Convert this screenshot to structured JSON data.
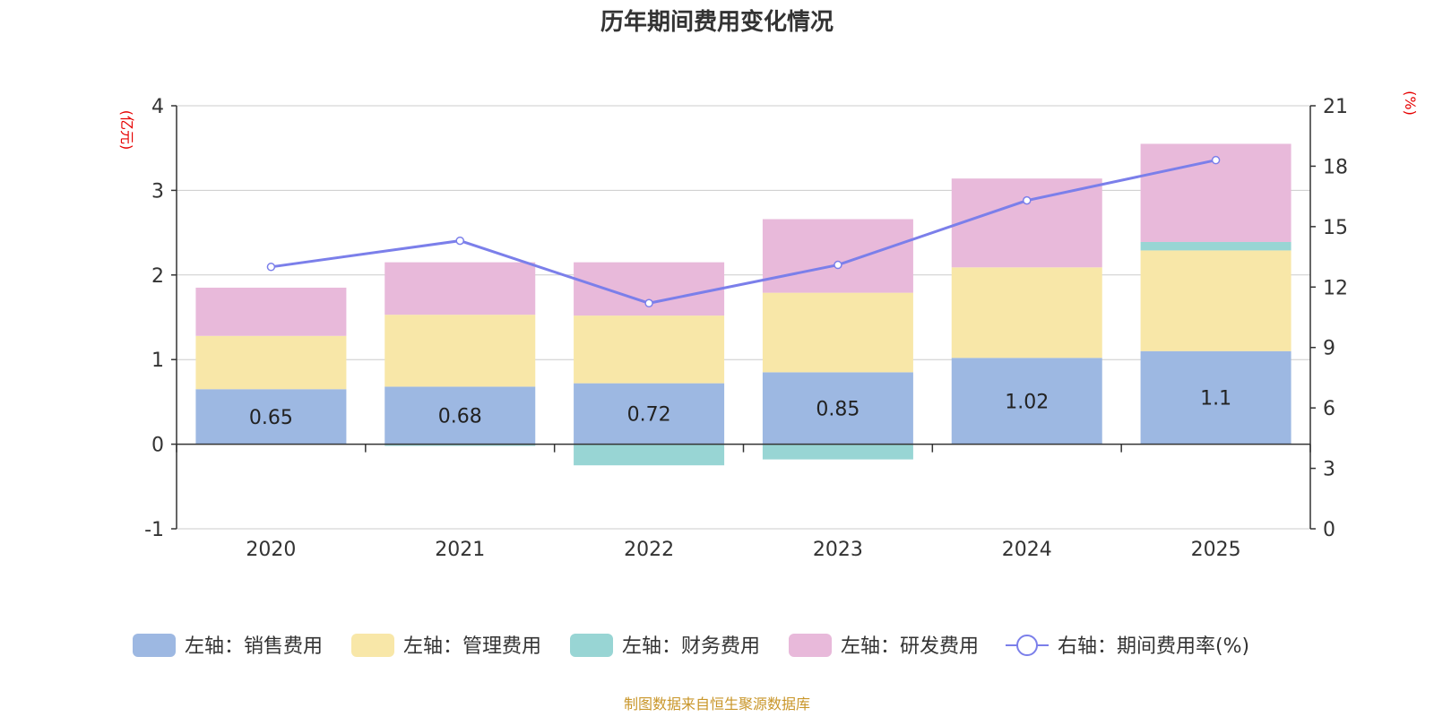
{
  "chart_data": {
    "type": "bar",
    "title": "历年期间费用变化情况",
    "categories": [
      "2020",
      "2021",
      "2022",
      "2023",
      "2024",
      "2025"
    ],
    "left_axis": {
      "unit": "(亿元)",
      "min": -1,
      "max": 4,
      "ticks": [
        -1,
        0,
        1,
        2,
        3,
        4
      ]
    },
    "right_axis": {
      "unit": "(%)",
      "min": 0,
      "max": 21,
      "ticks": [
        0,
        3,
        6,
        9,
        12,
        15,
        18,
        21
      ]
    },
    "series": [
      {
        "name": "左轴：销售费用",
        "axis": "left",
        "kind": "bar",
        "color": "#9db8e2",
        "values": [
          0.65,
          0.68,
          0.72,
          0.85,
          1.02,
          1.1
        ],
        "labels": [
          "0.65",
          "0.68",
          "0.72",
          "0.85",
          "1.02",
          "1.1"
        ]
      },
      {
        "name": "左轴：管理费用",
        "axis": "left",
        "kind": "bar",
        "color": "#f8e7a8",
        "values": [
          0.63,
          0.85,
          0.8,
          0.94,
          1.07,
          1.19
        ]
      },
      {
        "name": "左轴：财务费用",
        "axis": "left",
        "kind": "bar",
        "color": "#98d5d4",
        "values": [
          0.0,
          -0.02,
          -0.25,
          -0.18,
          0.0,
          0.1
        ]
      },
      {
        "name": "左轴：研发费用",
        "axis": "left",
        "kind": "bar",
        "color": "#e8b9da",
        "values": [
          0.57,
          0.62,
          0.63,
          0.87,
          1.05,
          1.16
        ]
      },
      {
        "name": "右轴：期间费用率(%)",
        "axis": "right",
        "kind": "line",
        "color": "#7b7fea",
        "values": [
          13.0,
          14.3,
          11.2,
          13.1,
          16.3,
          18.3
        ]
      }
    ],
    "grid": true,
    "legend_position": "bottom"
  },
  "footer": {
    "source": "制图数据来自恒生聚源数据库"
  }
}
